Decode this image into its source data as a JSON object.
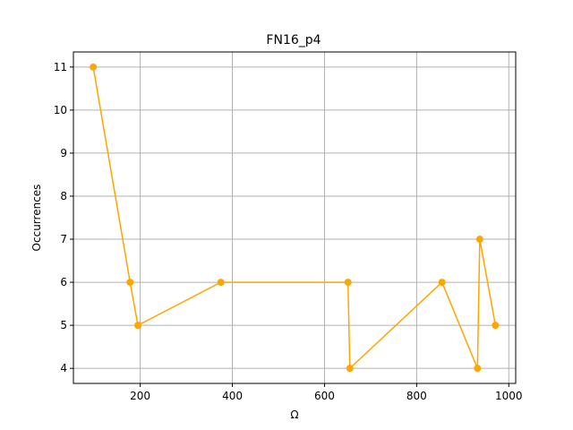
{
  "chart_data": {
    "type": "line",
    "title": "FN16_p4",
    "xlabel": "Ω",
    "ylabel": "Occurrences",
    "xlim": [
      55,
      1015
    ],
    "ylim": [
      3.65,
      11.35
    ],
    "xticks": [
      200,
      400,
      600,
      800,
      1000
    ],
    "yticks": [
      4,
      5,
      6,
      7,
      8,
      9,
      10,
      11
    ],
    "grid": true,
    "series": [
      {
        "color": "#ffa500",
        "x": [
          98,
          178,
          195,
          375,
          651,
          655,
          855,
          932,
          937,
          971
        ],
        "y": [
          11,
          6,
          5,
          6,
          6,
          4,
          6,
          4,
          7,
          5
        ]
      }
    ]
  }
}
